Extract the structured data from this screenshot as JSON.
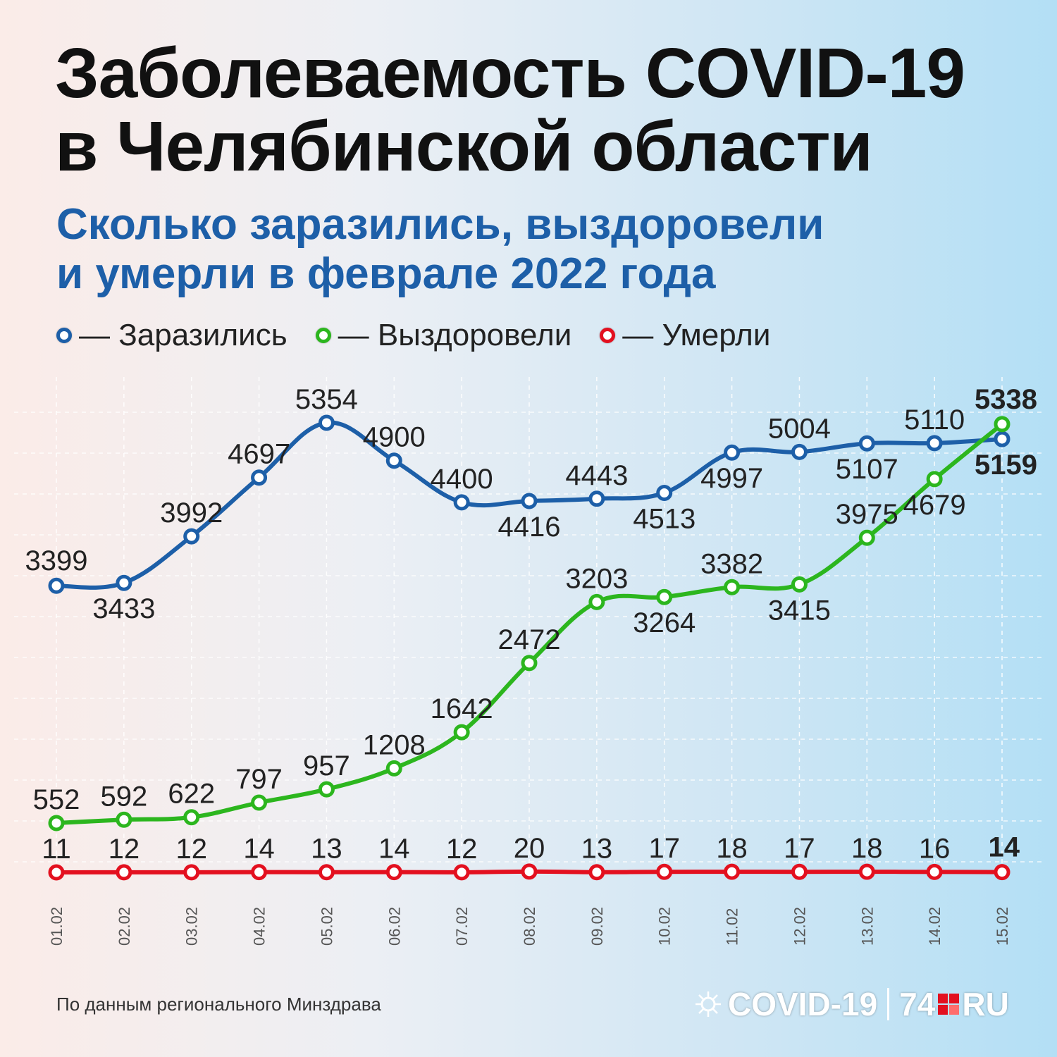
{
  "title": {
    "line1": "Заболеваемость COVID-19",
    "line2": "в Челябинской области"
  },
  "subtitle": {
    "line1": "Сколько заразились, выздоровели",
    "line2": "и умерли в феврале 2022 года"
  },
  "legend": [
    {
      "label": "— Заразились",
      "color": "#1d5fa8"
    },
    {
      "label": "— Выздоровели",
      "color": "#2cb61e"
    },
    {
      "label": "— Умерли",
      "color": "#e3101f"
    }
  ],
  "chart_data": {
    "type": "line",
    "categories": [
      "01.02",
      "02.02",
      "03.02",
      "04.02",
      "05.02",
      "06.02",
      "07.02",
      "08.02",
      "09.02",
      "10.02",
      "11.02",
      "12.02",
      "13.02",
      "14.02",
      "15.02"
    ],
    "series": [
      {
        "name": "Заразились",
        "color": "#1d5fa8",
        "values": [
          3399,
          3433,
          3992,
          4697,
          5354,
          4900,
          4400,
          4416,
          4443,
          4513,
          4997,
          5004,
          5107,
          5110,
          5159
        ]
      },
      {
        "name": "Выздоровели",
        "color": "#2cb61e",
        "values": [
          552,
          592,
          622,
          797,
          957,
          1208,
          1642,
          2472,
          3203,
          3264,
          3382,
          3415,
          3975,
          4679,
          5338
        ]
      },
      {
        "name": "Умерли",
        "color": "#e3101f",
        "values": [
          11,
          12,
          12,
          14,
          13,
          14,
          12,
          20,
          13,
          17,
          18,
          17,
          18,
          16,
          14
        ]
      }
    ],
    "grid": true
  },
  "source": "По данным регионального Минздрава",
  "logo": {
    "left": "COVID-19",
    "number": "74",
    "suffix": "RU"
  }
}
